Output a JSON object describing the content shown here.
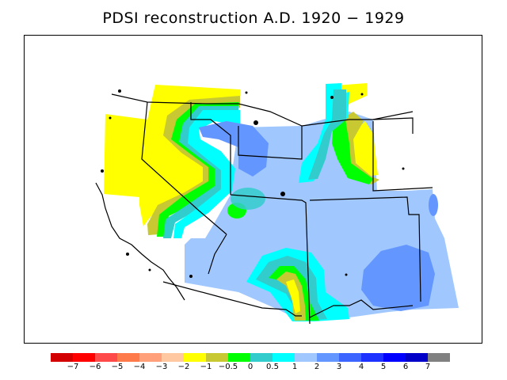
{
  "title": "PDSI reconstruction A.D. 1920 − 1929",
  "colors": {
    "yellow": "#ffff00",
    "olive": "#c8c832",
    "green": "#00ff00",
    "teal": "#32cccc",
    "cyan": "#00ffff",
    "light_blue": "#a0c8ff",
    "mid_blue": "#6496ff",
    "land_white": "#ffffff",
    "boundary": "#000000"
  },
  "legend": {
    "colors": [
      "#d20000",
      "#ff0000",
      "#ff4a4a",
      "#ff7a4a",
      "#ffa07a",
      "#ffc8a0",
      "#ffff00",
      "#c8c832",
      "#00ff00",
      "#32cccc",
      "#00ffff",
      "#a0c8ff",
      "#6496ff",
      "#3c64ff",
      "#1e32ff",
      "#0000ff",
      "#0000c8",
      "#808080"
    ],
    "labels": [
      "−7",
      "−6",
      "−5",
      "−4",
      "−3",
      "−2",
      "−1",
      "−0.5",
      "0",
      "0.5",
      "1",
      "2",
      "3",
      "4",
      "5",
      "6",
      "7"
    ]
  }
}
